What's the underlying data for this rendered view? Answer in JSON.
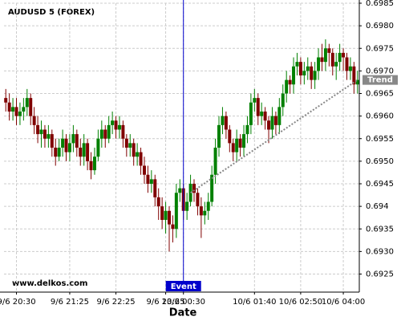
{
  "chart_data": {
    "type": "candlestick",
    "title": "AUDUSD 5 (FOREX)",
    "x_label": "Date",
    "watermark": "www.delkos.com",
    "categories": [
      null,
      null,
      null,
      "9/6 20:30",
      null,
      null,
      null,
      null,
      null,
      null,
      null,
      null,
      null,
      null,
      null,
      null,
      null,
      null,
      "9/6 21:25",
      null,
      null,
      null,
      null,
      null,
      null,
      null,
      null,
      null,
      null,
      null,
      null,
      "9/6 22:25",
      null,
      null,
      null,
      null,
      null,
      null,
      null,
      null,
      null,
      null,
      null,
      null,
      null,
      "9/6 23:25",
      null,
      null,
      null,
      null,
      "10/6 00:30",
      null,
      null,
      null,
      null,
      null,
      null,
      null,
      null,
      null,
      null,
      null,
      null,
      null,
      null,
      null,
      null,
      null,
      null,
      null,
      "10/6 01:40",
      null,
      null,
      null,
      null,
      null,
      null,
      null,
      null,
      null,
      null,
      null,
      null,
      "10/6 02:50",
      null,
      null,
      null,
      null,
      null,
      null,
      null,
      null,
      null,
      null,
      null,
      "10/6 04:00",
      null,
      null,
      null,
      null
    ],
    "open": [
      0.6964,
      0.6963,
      0.6961,
      0.6962,
      0.696,
      0.6961,
      0.6962,
      0.6964,
      0.696,
      0.6958,
      0.6956,
      0.6957,
      0.6955,
      0.6956,
      0.6953,
      0.6951,
      0.6953,
      0.6955,
      0.6952,
      0.6954,
      0.6956,
      0.6953,
      0.6951,
      0.6954,
      0.695,
      0.6948,
      0.6951,
      0.6955,
      0.6957,
      0.6955,
      0.6958,
      0.6959,
      0.6957,
      0.6958,
      0.6955,
      0.6953,
      0.6954,
      0.6951,
      0.6952,
      0.6949,
      0.6947,
      0.6945,
      0.6946,
      0.6942,
      0.694,
      0.6937,
      0.6939,
      0.6936,
      0.6935,
      0.6943,
      0.6944,
      0.6939,
      0.6941,
      0.6945,
      0.6943,
      0.694,
      0.6938,
      0.6939,
      0.6941,
      0.6947,
      0.6953,
      0.6958,
      0.696,
      0.6957,
      0.6954,
      0.6952,
      0.6955,
      0.6953,
      0.6956,
      0.6958,
      0.6963,
      0.6964,
      0.696,
      0.6961,
      0.6959,
      0.6957,
      0.696,
      0.6958,
      0.6962,
      0.6965,
      0.6968,
      0.6967,
      0.6971,
      0.6972,
      0.6969,
      0.697,
      0.6971,
      0.6968,
      0.697,
      0.6973,
      0.6972,
      0.6975,
      0.6974,
      0.6971,
      0.6972,
      0.6974,
      0.6973,
      0.697,
      0.6971,
      0.6967
    ],
    "high": [
      0.6966,
      0.6965,
      0.6964,
      0.6964,
      0.6963,
      0.6964,
      0.6966,
      0.6965,
      0.6962,
      0.696,
      0.6959,
      0.6958,
      0.6958,
      0.6957,
      0.6955,
      0.6955,
      0.6957,
      0.6956,
      0.6956,
      0.6958,
      0.6957,
      0.6955,
      0.6956,
      0.6955,
      0.6952,
      0.6953,
      0.6957,
      0.6959,
      0.6958,
      0.696,
      0.6961,
      0.696,
      0.696,
      0.6959,
      0.6956,
      0.6956,
      0.6955,
      0.6954,
      0.6953,
      0.6951,
      0.6949,
      0.6948,
      0.6947,
      0.6944,
      0.6942,
      0.6941,
      0.694,
      0.6938,
      0.6945,
      0.6946,
      0.6945,
      0.6943,
      0.6947,
      0.6946,
      0.6944,
      0.6942,
      0.6941,
      0.6943,
      0.6949,
      0.6955,
      0.696,
      0.6962,
      0.6961,
      0.6958,
      0.6955,
      0.6957,
      0.6956,
      0.6958,
      0.696,
      0.6965,
      0.6966,
      0.6965,
      0.6963,
      0.6962,
      0.696,
      0.6962,
      0.6961,
      0.6964,
      0.6967,
      0.697,
      0.6969,
      0.6973,
      0.6974,
      0.6973,
      0.6972,
      0.6973,
      0.6972,
      0.6972,
      0.6975,
      0.6976,
      0.6977,
      0.6976,
      0.6975,
      0.6974,
      0.6976,
      0.6975,
      0.6974,
      0.6973,
      0.6972,
      0.697
    ],
    "low": [
      0.6961,
      0.6959,
      0.6959,
      0.6958,
      0.6958,
      0.6959,
      0.696,
      0.6958,
      0.6956,
      0.6954,
      0.6953,
      0.6953,
      0.6953,
      0.6951,
      0.6949,
      0.695,
      0.6951,
      0.695,
      0.695,
      0.6952,
      0.6951,
      0.6949,
      0.6949,
      0.6948,
      0.6946,
      0.6947,
      0.695,
      0.6953,
      0.6953,
      0.6954,
      0.6956,
      0.6955,
      0.6955,
      0.6953,
      0.6951,
      0.6951,
      0.6949,
      0.6949,
      0.6947,
      0.6945,
      0.6943,
      0.6943,
      0.694,
      0.6937,
      0.6935,
      0.6934,
      0.693,
      0.6932,
      0.6933,
      0.6941,
      0.6937,
      0.6937,
      0.694,
      0.6941,
      0.6938,
      0.6933,
      0.6936,
      0.6937,
      0.694,
      0.6945,
      0.6951,
      0.6956,
      0.6955,
      0.6952,
      0.695,
      0.695,
      0.6951,
      0.6951,
      0.6954,
      0.6956,
      0.6961,
      0.6958,
      0.6958,
      0.6957,
      0.6954,
      0.6955,
      0.6956,
      0.6956,
      0.696,
      0.6963,
      0.6965,
      0.6965,
      0.6969,
      0.6967,
      0.6967,
      0.6968,
      0.6966,
      0.6966,
      0.6968,
      0.697,
      0.697,
      0.6971,
      0.6969,
      0.6968,
      0.697,
      0.697,
      0.6968,
      0.6968,
      0.6965,
      0.6965
    ],
    "close": [
      0.6963,
      0.6961,
      0.6962,
      0.696,
      0.6961,
      0.6962,
      0.6964,
      0.696,
      0.6958,
      0.6956,
      0.6957,
      0.6955,
      0.6956,
      0.6953,
      0.6951,
      0.6953,
      0.6955,
      0.6952,
      0.6954,
      0.6956,
      0.6953,
      0.6951,
      0.6954,
      0.695,
      0.6948,
      0.6951,
      0.6955,
      0.6957,
      0.6955,
      0.6958,
      0.6959,
      0.6957,
      0.6958,
      0.6955,
      0.6953,
      0.6954,
      0.6951,
      0.6952,
      0.6949,
      0.6947,
      0.6945,
      0.6946,
      0.6942,
      0.694,
      0.6937,
      0.6939,
      0.6936,
      0.6935,
      0.6943,
      0.6944,
      0.6939,
      0.6941,
      0.6945,
      0.6943,
      0.694,
      0.6938,
      0.6939,
      0.6941,
      0.6947,
      0.6953,
      0.6958,
      0.696,
      0.6957,
      0.6954,
      0.6952,
      0.6955,
      0.6953,
      0.6956,
      0.6958,
      0.6963,
      0.6964,
      0.696,
      0.6961,
      0.6959,
      0.6957,
      0.696,
      0.6958,
      0.6962,
      0.6965,
      0.6968,
      0.6967,
      0.6971,
      0.6972,
      0.6969,
      0.697,
      0.6971,
      0.6968,
      0.697,
      0.6973,
      0.6972,
      0.6975,
      0.6974,
      0.6971,
      0.6972,
      0.6974,
      0.6973,
      0.697,
      0.6971,
      0.6967,
      0.6968
    ],
    "up_color": "#008000",
    "down_color": "#800000",
    "ylim": [
      0.6921,
      0.6985
    ],
    "yticks": [
      0.6925,
      {
        "value": 0.693,
        "label": "0.6930"
      },
      0.6935,
      0.694,
      0.6945,
      {
        "value": 0.695,
        "label": "0.6950"
      },
      0.6955,
      {
        "value": 0.696,
        "label": "0.6960"
      },
      0.6965,
      {
        "value": 0.697,
        "label": "0.6970"
      },
      0.6975,
      {
        "value": 0.698,
        "label": "0.6980"
      },
      0.6985
    ],
    "grid": true,
    "event": {
      "label": "Event",
      "x": "10/6 00:30",
      "color": "#0000cc"
    },
    "trend": {
      "label": "Trend",
      "start": {
        "index": 52,
        "value": 0.6943
      },
      "end": {
        "index": 99,
        "value": 0.6968
      },
      "color": "#888888"
    }
  }
}
